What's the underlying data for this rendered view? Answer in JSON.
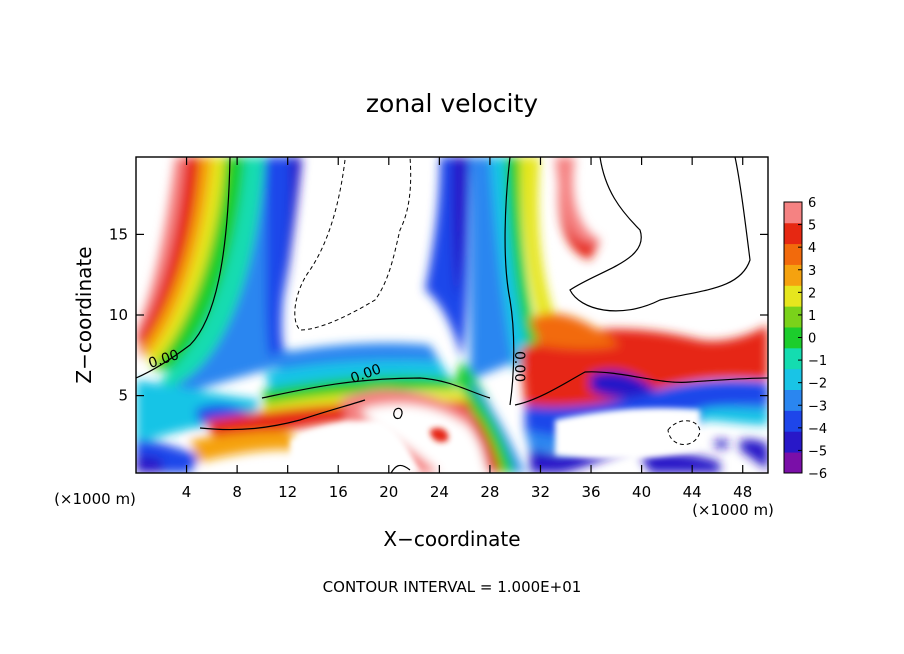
{
  "chart_data": {
    "type": "heatmap",
    "title": "zonal velocity",
    "xlabel": "X−coordinate",
    "ylabel": "Z−coordinate",
    "x_unit_left": "(×1000 m)",
    "x_unit_right": "(×1000 m)",
    "xlim": [
      0,
      50
    ],
    "ylim": [
      0.2,
      19.8
    ],
    "x_ticks": [
      4,
      8,
      12,
      16,
      20,
      24,
      28,
      32,
      36,
      40,
      44,
      48
    ],
    "x_tick_labels": [
      "4",
      "8",
      "12",
      "16",
      "20",
      "24",
      "28",
      "32",
      "36",
      "40",
      "44",
      "48"
    ],
    "y_ticks": [
      5,
      10,
      15
    ],
    "y_tick_labels": [
      "5",
      "10",
      "15"
    ],
    "contour_labels": [
      {
        "text": "0.00",
        "x": 2.3,
        "y": 7.0,
        "angle": -18
      },
      {
        "text": "0.00",
        "x": 18.3,
        "y": 6.1,
        "angle": -20
      },
      {
        "text": "0.00",
        "x": 30.0,
        "y": 6.8,
        "angle": 90
      }
    ],
    "colorbar": {
      "levels": [
        -6,
        -5,
        -4,
        -3,
        -2,
        -1,
        0,
        1,
        2,
        3,
        4,
        5,
        6
      ],
      "tick_labels": [
        "6",
        "5",
        "4",
        "3",
        "2",
        "1",
        "0",
        "−1",
        "−2",
        "−3",
        "−4",
        "−5",
        "−6"
      ],
      "colors": [
        "#7a0fa8",
        "#2818c8",
        "#1e46ea",
        "#2a86f0",
        "#19c4e6",
        "#14dcb0",
        "#1ccd2c",
        "#7ad21a",
        "#e6e61e",
        "#f5a20f",
        "#f26a0c",
        "#e62812",
        "#f58282"
      ]
    },
    "footer": "CONTOUR INTERVAL = 1.000E+01"
  }
}
